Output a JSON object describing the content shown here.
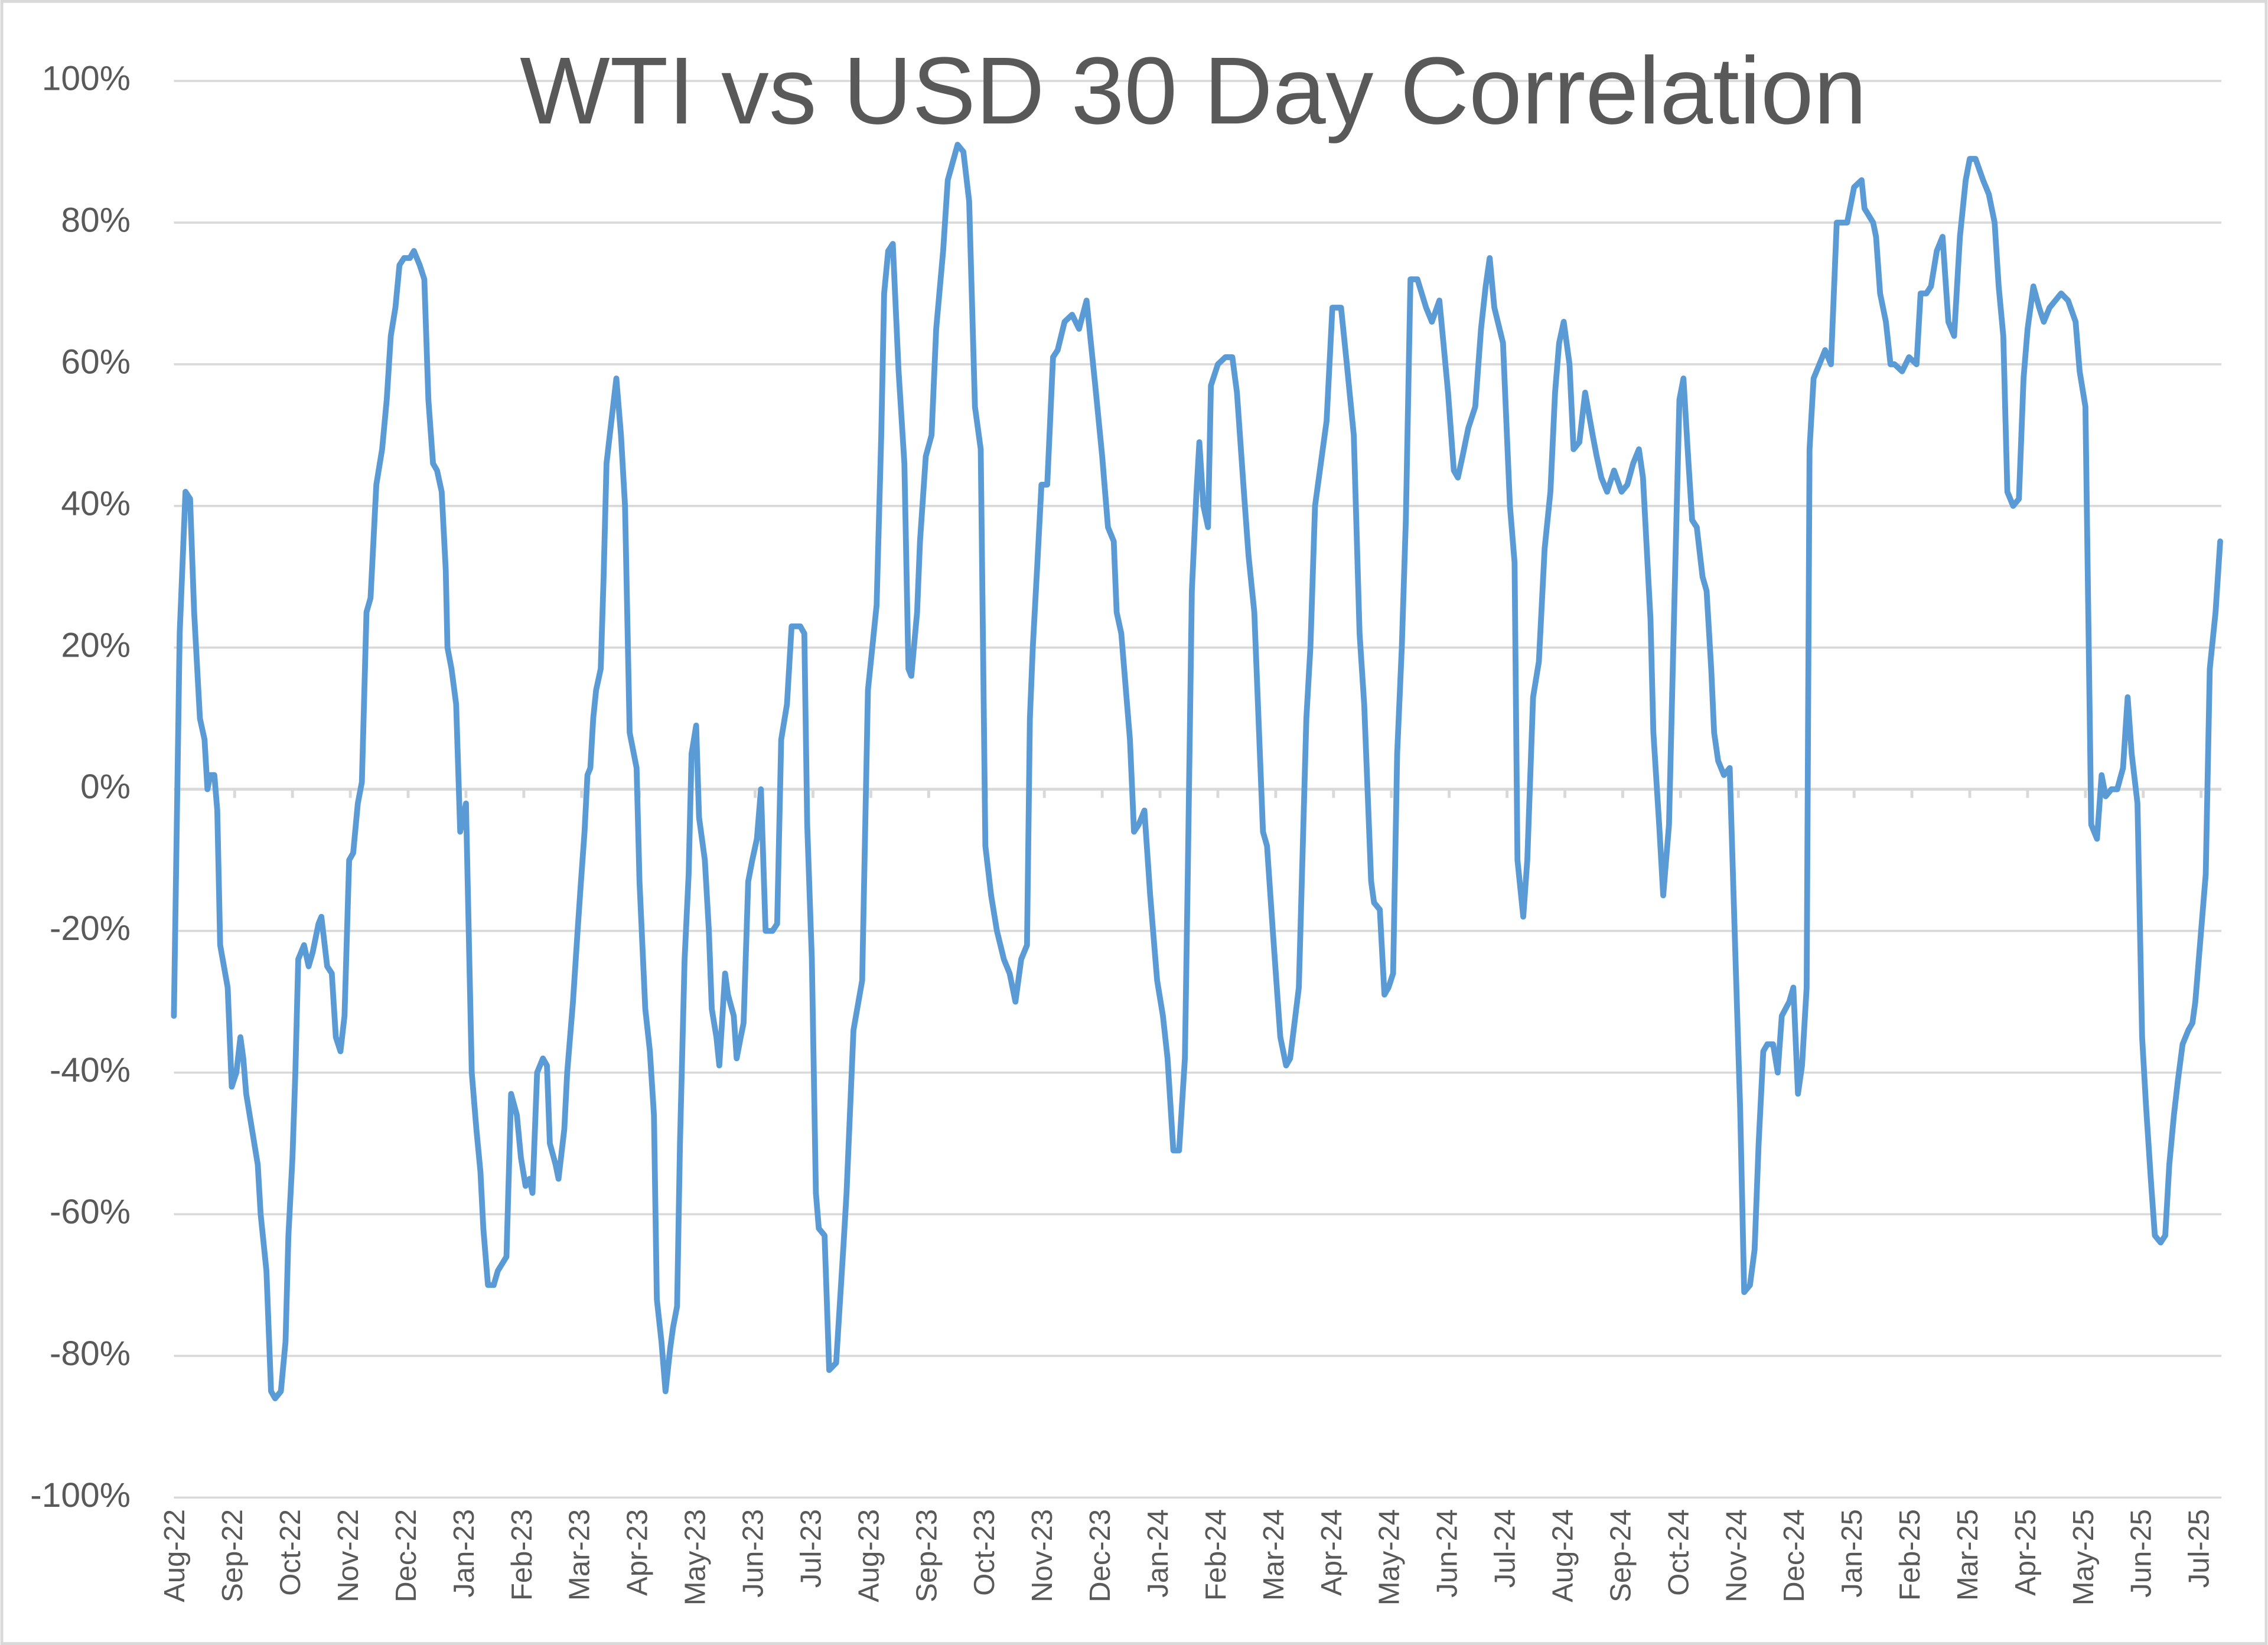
{
  "chart_data": {
    "type": "line",
    "title": "WTI vs USD 30 Day Correlation",
    "color": "#5b9bd5",
    "grid": true,
    "ylim": [
      -100,
      100
    ],
    "yticks": [
      {
        "value": -100,
        "label": "-100%"
      },
      {
        "value": -80,
        "label": "-80%"
      },
      {
        "value": -60,
        "label": "-60%"
      },
      {
        "value": -40,
        "label": "-40%"
      },
      {
        "value": -20,
        "label": "-20%"
      },
      {
        "value": 0,
        "label": "0%"
      },
      {
        "value": 20,
        "label": "20%"
      },
      {
        "value": 40,
        "label": "40%"
      },
      {
        "value": 60,
        "label": "60%"
      },
      {
        "value": 80,
        "label": "80%"
      },
      {
        "value": 100,
        "label": "100%"
      }
    ],
    "xlim": [
      -0.05,
      35.35
    ],
    "xticks": [
      {
        "value": 0,
        "label": "Aug-22"
      },
      {
        "value": 1,
        "label": "Sep-22"
      },
      {
        "value": 2,
        "label": "Oct-22"
      },
      {
        "value": 3,
        "label": "Nov-22"
      },
      {
        "value": 4,
        "label": "Dec-22"
      },
      {
        "value": 5,
        "label": "Jan-23"
      },
      {
        "value": 6,
        "label": "Feb-23"
      },
      {
        "value": 7,
        "label": "Mar-23"
      },
      {
        "value": 8,
        "label": "Apr-23"
      },
      {
        "value": 9,
        "label": "May-23"
      },
      {
        "value": 10,
        "label": "Jun-23"
      },
      {
        "value": 11,
        "label": "Jul-23"
      },
      {
        "value": 12,
        "label": "Aug-23"
      },
      {
        "value": 13,
        "label": "Sep-23"
      },
      {
        "value": 14,
        "label": "Oct-23"
      },
      {
        "value": 15,
        "label": "Nov-23"
      },
      {
        "value": 16,
        "label": "Dec-23"
      },
      {
        "value": 17,
        "label": "Jan-24"
      },
      {
        "value": 18,
        "label": "Feb-24"
      },
      {
        "value": 19,
        "label": "Mar-24"
      },
      {
        "value": 20,
        "label": "Apr-24"
      },
      {
        "value": 21,
        "label": "May-24"
      },
      {
        "value": 22,
        "label": "Jun-24"
      },
      {
        "value": 23,
        "label": "Jul-24"
      },
      {
        "value": 24,
        "label": "Aug-24"
      },
      {
        "value": 25,
        "label": "Sep-24"
      },
      {
        "value": 26,
        "label": "Oct-24"
      },
      {
        "value": 27,
        "label": "Nov-24"
      },
      {
        "value": 28,
        "label": "Dec-24"
      },
      {
        "value": 29,
        "label": "Jan-25"
      },
      {
        "value": 30,
        "label": "Feb-25"
      },
      {
        "value": 31,
        "label": "Mar-25"
      },
      {
        "value": 32,
        "label": "Apr-25"
      },
      {
        "value": 33,
        "label": "May-25"
      },
      {
        "value": 34,
        "label": "Jun-25"
      },
      {
        "value": 35,
        "label": "Jul-25"
      }
    ],
    "x": [
      -0.05,
      0.05,
      0.15,
      0.23,
      0.3,
      0.4,
      0.48,
      0.53,
      0.58,
      0.65,
      0.7,
      0.75,
      0.88,
      0.95,
      1.03,
      1.1,
      1.15,
      1.2,
      1.3,
      1.4,
      1.45,
      1.55,
      1.63,
      1.7,
      1.8,
      1.88,
      1.93,
      2,
      2.05,
      2.1,
      2.2,
      2.28,
      2.35,
      2.45,
      2.5,
      2.6,
      2.68,
      2.75,
      2.83,
      2.9,
      2.98,
      3.05,
      3.13,
      3.2,
      3.28,
      3.35,
      3.45,
      3.55,
      3.63,
      3.7,
      3.78,
      3.85,
      3.93,
      4.03,
      4.1,
      4.2,
      4.28,
      4.35,
      4.43,
      4.5,
      4.58,
      4.65,
      4.68,
      4.75,
      4.83,
      4.9,
      5,
      5.1,
      5.18,
      5.25,
      5.3,
      5.38,
      5.48,
      5.55,
      5.7,
      5.78,
      5.88,
      5.95,
      6.03,
      6.1,
      6.15,
      6.23,
      6.33,
      6.4,
      6.45,
      6.55,
      6.6,
      6.7,
      6.75,
      6.85,
      6.93,
      6.98,
      7.05,
      7.1,
      7.15,
      7.2,
      7.25,
      7.33,
      7.38,
      7.43,
      7.5,
      7.6,
      7.68,
      7.75,
      7.83,
      7.95,
      8,
      8.1,
      8.18,
      8.25,
      8.3,
      8.38,
      8.45,
      8.53,
      8.58,
      8.65,
      8.7,
      8.78,
      8.85,
      8.9,
      8.98,
      9.03,
      9.13,
      9.2,
      9.25,
      9.33,
      9.38,
      9.48,
      9.53,
      9.63,
      9.68,
      9.75,
      9.8,
      9.88,
      9.95,
      10.03,
      10.1,
      10.18,
      10.3,
      10.38,
      10.45,
      10.55,
      10.63,
      10.78,
      10.85,
      10.9,
      10.98,
      11.05,
      11.1,
      11.2,
      11.28,
      11.4,
      11.53,
      11.58,
      11.7,
      11.85,
      11.95,
      12.1,
      12.18,
      12.23,
      12.3,
      12.38,
      12.48,
      12.58,
      12.65,
      12.7,
      12.8,
      12.85,
      12.95,
      13.05,
      13.13,
      13.25,
      13.33,
      13.5,
      13.6,
      13.7,
      13.8,
      13.9,
      13.98,
      14.08,
      14.18,
      14.3,
      14.4,
      14.5,
      14.6,
      14.7,
      14.75,
      14.8,
      14.88,
      14.95,
      15.05,
      15.15,
      15.23,
      15.35,
      15.48,
      15.6,
      15.73,
      15.88,
      16,
      16.1,
      16.2,
      16.25,
      16.33,
      16.48,
      16.55,
      16.63,
      16.73,
      16.83,
      16.95,
      17.05,
      17.13,
      17.23,
      17.33,
      17.43,
      17.48,
      17.55,
      17.63,
      17.68,
      17.75,
      17.83,
      17.88,
      18,
      18.13,
      18.25,
      18.33,
      18.45,
      18.53,
      18.63,
      18.78,
      18.85,
      18.95,
      19.08,
      19.18,
      19.25,
      19.4,
      19.53,
      19.6,
      19.68,
      19.78,
      19.88,
      19.98,
      20.13,
      20.23,
      20.35,
      20.45,
      20.53,
      20.65,
      20.7,
      20.8,
      20.88,
      20.95,
      21.03,
      21.1,
      21.18,
      21.25,
      21.33,
      21.45,
      21.6,
      21.7,
      21.83,
      21.9,
      21.98,
      22.08,
      22.15,
      22.23,
      22.33,
      22.45,
      22.55,
      22.63,
      22.7,
      22.78,
      22.93,
      23.05,
      23.13,
      23.18,
      23.28,
      23.35,
      23.45,
      23.55,
      23.65,
      23.75,
      23.83,
      23.9,
      23.98,
      24.08,
      24.15,
      24.25,
      24.35,
      24.48,
      24.55,
      24.63,
      24.73,
      24.85,
      24.98,
      25.08,
      25.18,
      25.28,
      25.35,
      25.48,
      25.53,
      25.63,
      25.7,
      25.8,
      25.88,
      25.98,
      26.05,
      26.13,
      26.2,
      26.28,
      26.38,
      26.45,
      26.53,
      26.58,
      26.65,
      26.75,
      26.85,
      26.95,
      27.03,
      27.1,
      27.2,
      27.28,
      27.35,
      27.43,
      27.5,
      27.6,
      27.68,
      27.75,
      27.88,
      27.95,
      28.03,
      28.1,
      28.18,
      28.23,
      28.3,
      28.4,
      28.5,
      28.6,
      28.7,
      28.78,
      28.88,
      29,
      29.13,
      29.18,
      29.33,
      29.38,
      29.45,
      29.55,
      29.63,
      29.7,
      29.83,
      29.95,
      30.08,
      30.15,
      30.25,
      30.33,
      30.43,
      30.53,
      30.63,
      30.73,
      30.83,
      30.93,
      31,
      31.1,
      31.23,
      31.33,
      31.43,
      31.5,
      31.58,
      31.65,
      31.75,
      31.85,
      31.93,
      32,
      32.1,
      32.2,
      32.28,
      32.38,
      32.48,
      32.58,
      32.7,
      32.83,
      32.9,
      33,
      33.1,
      33.2,
      33.28,
      33.35,
      33.45,
      33.55,
      33.65,
      33.73,
      33.8,
      33.9,
      33.98,
      34.05,
      34.13,
      34.2,
      34.3,
      34.38,
      34.45,
      34.53,
      34.6,
      34.68,
      34.78,
      34.85,
      34.9,
      35,
      35.08,
      35.15,
      35.25,
      35.33
    ],
    "values": [
      -32,
      22,
      42,
      41,
      25,
      10,
      7,
      0,
      2,
      2,
      -3,
      -22,
      -28,
      -42,
      -40,
      -35,
      -38,
      -43,
      -48,
      -53,
      -60,
      -68,
      -85,
      -86,
      -85,
      -78,
      -63,
      -52,
      -40,
      -24,
      -22,
      -25,
      -23,
      -19,
      -18,
      -25,
      -26,
      -35,
      -37,
      -32,
      -10,
      -9,
      -2,
      1,
      25,
      27,
      43,
      48,
      55,
      64,
      68,
      74,
      75,
      75,
      76,
      74,
      72,
      55,
      46,
      45,
      42,
      31,
      20,
      17,
      12,
      -6,
      -2,
      -40,
      -48,
      -54,
      -62,
      -70,
      -70,
      -68,
      -66,
      -43,
      -46,
      -52,
      -56,
      -55,
      -57,
      -40,
      -38,
      -39,
      -50,
      -53,
      -55,
      -48,
      -40,
      -30,
      -20,
      -14,
      -6,
      2,
      3,
      10,
      14,
      17,
      30,
      46,
      51,
      58,
      50,
      40,
      8,
      3,
      -13,
      -31,
      -37,
      -46,
      -72,
      -78,
      -85,
      -79,
      -76,
      -73,
      -50,
      -24,
      -12,
      5,
      9,
      -4,
      -10,
      -20,
      -31,
      -35,
      -39,
      -26,
      -29,
      -32,
      -38,
      -35,
      -33,
      -13,
      -10,
      -7,
      0,
      -20,
      -20,
      -19,
      7,
      12,
      23,
      23,
      22,
      -5,
      -24,
      -57,
      -62,
      -63,
      -82,
      -81,
      -64,
      -57,
      -34,
      -27,
      14,
      26,
      50,
      70,
      76,
      77,
      59,
      46,
      17,
      16,
      25,
      35,
      47,
      50,
      65,
      76,
      86,
      91,
      90,
      83,
      54,
      48,
      -8,
      -15,
      -20,
      -24,
      -26,
      -30,
      -24,
      -22,
      10,
      20,
      32,
      43,
      43,
      61,
      62,
      66,
      67,
      65,
      69,
      57,
      47,
      37,
      35,
      25,
      22,
      7,
      -6,
      -5,
      -3,
      -15,
      -27,
      -32,
      -38,
      -51,
      -51,
      -38,
      -12,
      28,
      42,
      49,
      40,
      37,
      57,
      60,
      61,
      61,
      56,
      42,
      33,
      25,
      -6,
      -8,
      -20,
      -35,
      -39,
      -38,
      -28,
      10,
      20,
      40,
      46,
      52,
      68,
      68,
      60,
      50,
      22,
      12,
      -13,
      -16,
      -17,
      -29,
      -28,
      -26,
      5,
      20,
      38,
      72,
      72,
      68,
      66,
      69,
      63,
      56,
      45,
      44,
      47,
      51,
      54,
      65,
      71,
      75,
      68,
      63,
      40,
      32,
      -10,
      -18,
      -10,
      13,
      18,
      34,
      42,
      56,
      63,
      66,
      60,
      48,
      49,
      56,
      50,
      47,
      44,
      42,
      45,
      42,
      43,
      46,
      48,
      44,
      24,
      8,
      -5,
      -15,
      -5,
      22,
      55,
      58,
      47,
      38,
      37,
      30,
      28,
      17,
      8,
      4,
      2,
      3,
      -24,
      -45,
      -71,
      -70,
      -65,
      -50,
      -37,
      -36,
      -36,
      -40,
      -32,
      -30,
      -28,
      -43,
      -39,
      -28,
      48,
      58,
      60,
      62,
      60,
      80,
      80,
      80,
      85,
      86,
      82,
      80,
      78,
      70,
      66,
      60,
      60,
      59,
      61,
      60,
      70,
      70,
      71,
      76,
      78,
      66,
      64,
      78,
      86,
      89,
      89,
      86,
      84,
      80,
      71,
      64,
      42,
      40,
      41,
      58,
      65,
      71,
      68,
      66,
      68,
      69,
      70,
      69,
      66,
      59,
      54,
      -5,
      -7,
      2,
      -1,
      0,
      0,
      3,
      13,
      5,
      -2,
      -35,
      -45,
      -55,
      -63,
      -64,
      -63,
      -53,
      -46,
      -41,
      -36,
      -34,
      -33,
      -30,
      -20,
      -12,
      17,
      25,
      35
    ]
  }
}
